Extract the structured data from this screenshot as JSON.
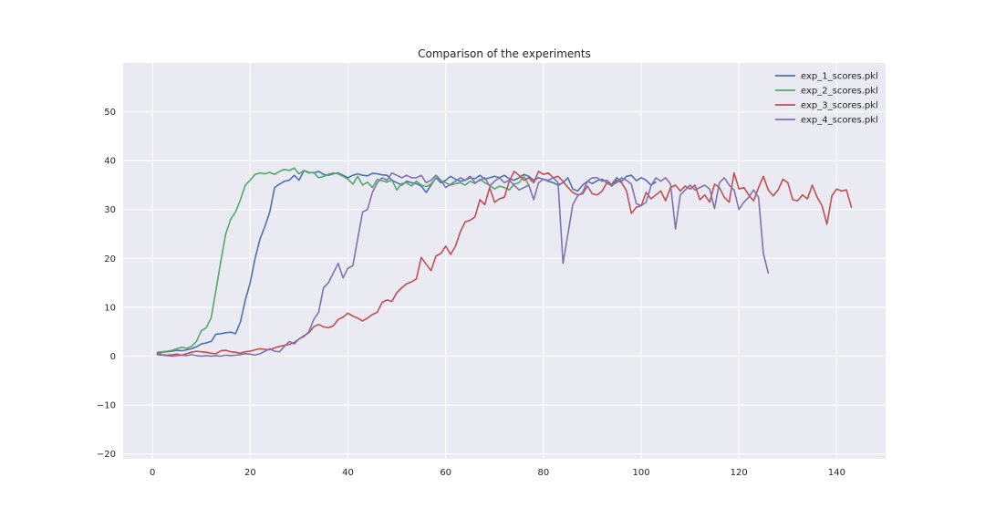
{
  "chart_data": {
    "type": "line",
    "title": "Comparison of the experiments",
    "xlabel": "",
    "ylabel": "",
    "xlim": [
      -6,
      150
    ],
    "ylim": [
      -21,
      60
    ],
    "xticks": [
      0,
      20,
      40,
      60,
      80,
      100,
      120,
      140
    ],
    "yticks": [
      -20,
      -10,
      0,
      10,
      20,
      30,
      40,
      50
    ],
    "grid": true,
    "legend_position": "top-right",
    "series": [
      {
        "name": "exp_1_scores.pkl",
        "color": "#4c72b0",
        "x": [
          1,
          2,
          3,
          4,
          5,
          6,
          7,
          8,
          9,
          10,
          11,
          12,
          13,
          14,
          15,
          16,
          17,
          18,
          19,
          20,
          21,
          22,
          23,
          24,
          25,
          26,
          27,
          28,
          29,
          30,
          31,
          32,
          33,
          34,
          35,
          36,
          37,
          38,
          39,
          40,
          41,
          42,
          43,
          44,
          45,
          46,
          47,
          48,
          49,
          50,
          51,
          52,
          53,
          54,
          55,
          56,
          57,
          58,
          59,
          60,
          61,
          62,
          63,
          64,
          65,
          66,
          67,
          68,
          69,
          70,
          71,
          72,
          73,
          74,
          75,
          76,
          77,
          78,
          79,
          80,
          81,
          82,
          83,
          84,
          85,
          86,
          87,
          88,
          89,
          90,
          91,
          92,
          93,
          94,
          95,
          96,
          97,
          98,
          99,
          100,
          101,
          102,
          103
        ],
        "values": [
          0.5,
          0.8,
          0.9,
          1.0,
          1.2,
          1.1,
          1.3,
          1.5,
          1.9,
          2.5,
          2.7,
          3.0,
          4.5,
          4.6,
          4.8,
          4.9,
          4.6,
          7.0,
          11.5,
          15.0,
          20.0,
          24.0,
          26.5,
          29.5,
          34.5,
          35.2,
          35.8,
          36.0,
          37.0,
          36.0,
          38.0,
          37.6,
          37.5,
          37.8,
          37.2,
          37.0,
          37.3,
          37.5,
          37.0,
          36.5,
          37.0,
          37.3,
          37.0,
          36.9,
          37.4,
          37.3,
          37.1,
          37.0,
          36.0,
          35.5,
          35.0,
          35.8,
          35.5,
          35.3,
          34.8,
          33.5,
          35.0,
          36.5,
          35.5,
          36.0,
          36.8,
          36.2,
          35.8,
          36.0,
          36.5,
          36.3,
          37.0,
          36.2,
          36.5,
          36.8,
          36.5,
          37.0,
          36.3,
          36.0,
          36.5,
          37.2,
          36.8,
          36.0,
          36.5,
          36.2,
          35.8,
          35.5,
          35.0,
          35.5,
          36.5,
          34.2,
          33.8,
          35.0,
          35.8,
          35.3,
          35.9,
          36.2,
          35.5,
          35.2,
          36.5,
          35.8,
          36.8,
          37.0,
          35.9,
          36.5,
          36.0,
          35.0,
          35.6
        ]
      },
      {
        "name": "exp_2_scores.pkl",
        "color": "#55a868",
        "x": [
          1,
          2,
          3,
          4,
          5,
          6,
          7,
          8,
          9,
          10,
          11,
          12,
          13,
          14,
          15,
          16,
          17,
          18,
          19,
          20,
          21,
          22,
          23,
          24,
          25,
          26,
          27,
          28,
          29,
          30,
          31,
          32,
          33,
          34,
          35,
          36,
          37,
          38,
          39,
          40,
          41,
          42,
          43,
          44,
          45,
          46,
          47,
          48,
          49,
          50,
          51,
          52,
          53,
          54,
          55,
          56,
          57,
          58,
          59,
          60,
          61,
          62,
          63,
          64,
          65,
          66,
          67,
          68,
          69,
          70,
          71,
          72,
          73,
          74,
          75,
          76,
          77
        ],
        "values": [
          0.8,
          0.9,
          1.0,
          1.2,
          1.5,
          1.8,
          1.6,
          2.0,
          3.0,
          5.2,
          5.8,
          7.8,
          13.5,
          19.5,
          25.0,
          28.0,
          29.5,
          32.0,
          35.0,
          36.0,
          37.2,
          37.5,
          37.3,
          37.6,
          37.2,
          37.8,
          38.2,
          38.0,
          38.5,
          37.3,
          38.0,
          37.5,
          37.6,
          36.5,
          36.8,
          37.2,
          37.5,
          37.3,
          36.8,
          36.2,
          35.2,
          36.8,
          35.0,
          35.6,
          34.5,
          36.2,
          35.9,
          35.6,
          36.1,
          34.0,
          35.3,
          35.5,
          34.8,
          35.8,
          35.0,
          34.7,
          35.2,
          36.5,
          35.8,
          35.5,
          35.0,
          35.3,
          35.5,
          35.0,
          35.8,
          35.3,
          36.2,
          35.5,
          35.0,
          34.2,
          34.8,
          34.5,
          34.0,
          35.2,
          35.5,
          36.8,
          35.0
        ]
      },
      {
        "name": "exp_3_scores.pkl",
        "color": "#c44e52",
        "x": [
          1,
          2,
          3,
          4,
          5,
          6,
          7,
          8,
          9,
          10,
          11,
          12,
          13,
          14,
          15,
          16,
          17,
          18,
          19,
          20,
          21,
          22,
          23,
          24,
          25,
          26,
          27,
          28,
          29,
          30,
          31,
          32,
          33,
          34,
          35,
          36,
          37,
          38,
          39,
          40,
          41,
          42,
          43,
          44,
          45,
          46,
          47,
          48,
          49,
          50,
          51,
          52,
          53,
          54,
          55,
          56,
          57,
          58,
          59,
          60,
          61,
          62,
          63,
          64,
          65,
          66,
          67,
          68,
          69,
          70,
          71,
          72,
          73,
          74,
          75,
          76,
          77,
          78,
          79,
          80,
          81,
          82,
          83,
          84,
          85,
          86,
          87,
          88,
          89,
          90,
          91,
          92,
          93,
          94,
          95,
          96,
          97,
          98,
          99,
          100,
          101,
          102,
          103,
          104,
          105,
          106,
          107,
          108,
          109,
          110,
          111,
          112,
          113,
          114,
          115,
          116,
          117,
          118,
          119,
          120,
          121,
          122,
          123,
          124,
          125,
          126,
          127,
          128,
          129,
          130,
          131,
          132,
          133,
          134,
          135,
          136,
          137,
          138,
          139,
          140,
          141,
          142,
          143
        ],
        "values": [
          0.5,
          0.3,
          0.2,
          0.3,
          0.4,
          0.2,
          0.5,
          0.8,
          1.0,
          0.9,
          0.8,
          0.6,
          0.5,
          1.1,
          1.2,
          0.9,
          0.8,
          0.6,
          0.9,
          1.0,
          1.3,
          1.5,
          1.4,
          1.3,
          1.7,
          2.0,
          2.2,
          2.4,
          2.8,
          3.5,
          4.2,
          4.8,
          6.0,
          6.5,
          6.0,
          5.8,
          6.2,
          7.5,
          8.0,
          8.8,
          8.2,
          7.8,
          7.2,
          7.8,
          8.5,
          9.0,
          11.0,
          11.5,
          11.2,
          13.0,
          14.0,
          14.8,
          15.2,
          15.8,
          20.2,
          18.8,
          17.5,
          20.5,
          21.0,
          22.5,
          20.8,
          22.5,
          25.5,
          27.5,
          27.8,
          28.5,
          32.0,
          31.0,
          34.5,
          31.5,
          32.2,
          32.5,
          35.8,
          37.8,
          37.0,
          36.0,
          36.5,
          35.5,
          37.8,
          37.2,
          37.5,
          36.5,
          36.8,
          35.8,
          34.5,
          33.5,
          33.0,
          33.2,
          34.8,
          33.2,
          33.0,
          33.8,
          35.5,
          34.8,
          36.0,
          35.5,
          33.8,
          29.2,
          30.5,
          30.8,
          33.5,
          32.2,
          33.0,
          33.8,
          31.8,
          34.5,
          35.0,
          33.8,
          34.8,
          34.2,
          35.0,
          32.0,
          33.0,
          31.5,
          35.2,
          34.5,
          32.5,
          31.5,
          37.5,
          34.2,
          34.5,
          33.0,
          31.8,
          34.5,
          36.8,
          34.0,
          32.8,
          34.0,
          36.2,
          35.5,
          32.0,
          31.8,
          33.0,
          32.2,
          35.0,
          32.5,
          30.8,
          27.0,
          32.8,
          34.2,
          33.8,
          34.0,
          30.5
        ]
      },
      {
        "name": "exp_4_scores.pkl",
        "color": "#8172b2",
        "x": [
          1,
          2,
          3,
          4,
          5,
          6,
          7,
          8,
          9,
          10,
          11,
          12,
          13,
          14,
          15,
          16,
          17,
          18,
          19,
          20,
          21,
          22,
          23,
          24,
          25,
          26,
          27,
          28,
          29,
          30,
          31,
          32,
          33,
          34,
          35,
          36,
          37,
          38,
          39,
          40,
          41,
          42,
          43,
          44,
          45,
          46,
          47,
          48,
          49,
          50,
          51,
          52,
          53,
          54,
          55,
          56,
          57,
          58,
          59,
          60,
          61,
          62,
          63,
          64,
          65,
          66,
          67,
          68,
          69,
          70,
          71,
          72,
          73,
          74,
          75,
          76,
          77,
          78,
          79,
          80,
          81,
          82,
          83,
          84,
          85,
          86,
          87,
          88,
          89,
          90,
          91,
          92,
          93,
          94,
          95,
          96,
          97,
          98,
          99,
          100,
          101,
          102,
          103,
          104,
          105,
          106,
          107,
          108,
          109,
          110,
          111,
          112,
          113,
          114,
          115,
          116,
          117,
          118,
          119,
          120,
          121,
          122,
          123,
          124,
          125,
          126
        ],
        "values": [
          0.3,
          0.2,
          0.1,
          0.0,
          0.1,
          0.2,
          0.1,
          0.3,
          0.1,
          0.0,
          0.1,
          0.0,
          0.1,
          0.0,
          0.2,
          0.1,
          0.2,
          0.3,
          0.5,
          0.4,
          0.2,
          0.5,
          1.0,
          1.5,
          1.0,
          0.9,
          2.0,
          3.0,
          2.5,
          3.5,
          4.0,
          5.0,
          7.5,
          9.0,
          14.0,
          15.0,
          17.0,
          19.0,
          16.0,
          18.0,
          18.5,
          24.0,
          29.5,
          30.0,
          33.5,
          35.5,
          36.5,
          36.0,
          37.5,
          37.0,
          36.5,
          37.0,
          36.5,
          36.5,
          37.0,
          35.5,
          36.0,
          37.0,
          36.0,
          34.5,
          35.2,
          35.8,
          36.5,
          36.0,
          36.8,
          35.5,
          36.0,
          36.5,
          34.8,
          35.8,
          36.5,
          35.5,
          36.0,
          35.0,
          34.0,
          34.5,
          35.0,
          32.0,
          35.5,
          36.2,
          36.0,
          36.5,
          35.5,
          19.0,
          25.0,
          31.0,
          32.8,
          33.5,
          35.8,
          36.5,
          36.5,
          35.8,
          36.0,
          35.0,
          35.5,
          36.5,
          36.0,
          35.2,
          31.2,
          30.8,
          31.5,
          34.8,
          36.5,
          35.8,
          36.5,
          35.2,
          26.0,
          33.0,
          34.0,
          35.0,
          34.0,
          34.5,
          35.0,
          34.2,
          30.2,
          35.5,
          36.5,
          35.0,
          34.0,
          30.0,
          31.5,
          32.5,
          34.0,
          32.5,
          21.0,
          17.0
        ]
      }
    ]
  }
}
